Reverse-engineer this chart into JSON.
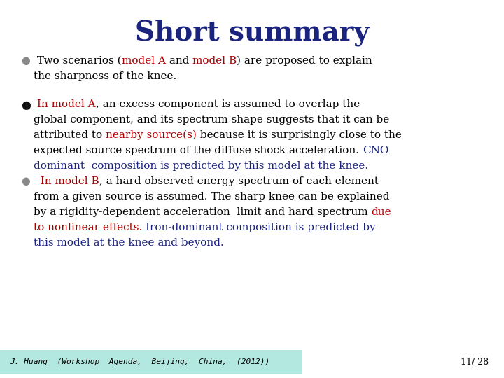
{
  "title": "Short summary",
  "title_color": "#1a237e",
  "title_fontsize": 28,
  "background_color": "#ffffff",
  "bullet_color_gray": "#888888",
  "bullet_color_black": "#111111",
  "text_black": "#000000",
  "text_red": "#aa0000",
  "text_blue": "#1a237e",
  "footer_bg": "#b2e8e0",
  "footer_text": "J. Huang  (Workshop  Agenda,  Beijing,  China,  (2012))",
  "footer_right": "11/ 28",
  "body_fontsize": 11,
  "serif": "DejaVu Serif"
}
